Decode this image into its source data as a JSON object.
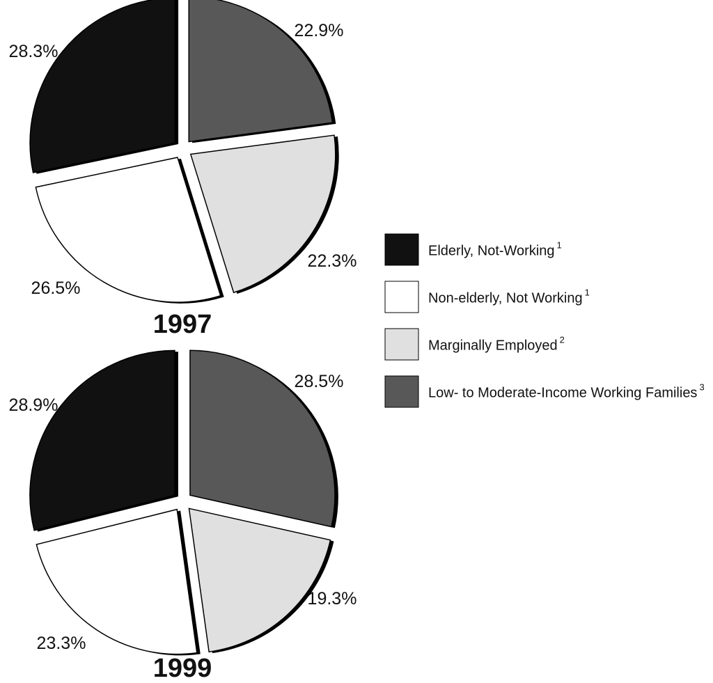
{
  "colors": {
    "elderly": "#111111",
    "nonelderly": "#ffffff",
    "marginal": "#e0e0e0",
    "lowmod": "#585858",
    "shadow": "#000000",
    "outline": "#000000"
  },
  "legend": [
    {
      "key": "elderly",
      "label": "Elderly, Not-Working",
      "sup": "1"
    },
    {
      "key": "nonelderly",
      "label": "Non-elderly, Not Working",
      "sup": "1"
    },
    {
      "key": "marginal",
      "label": "Marginally Employed",
      "sup": "2"
    },
    {
      "key": "lowmod",
      "label": "Low- to Moderate-Income Working Families",
      "sup": "3"
    }
  ],
  "chart_data": [
    {
      "type": "pie",
      "title": "1997",
      "categories": [
        "Low- to Moderate-Income Working Families",
        "Marginally Employed",
        "Non-elderly, Not Working",
        "Elderly, Not-Working"
      ],
      "keys": [
        "lowmod",
        "marginal",
        "nonelderly",
        "elderly"
      ],
      "values": [
        22.9,
        22.3,
        26.5,
        28.3
      ],
      "labels": [
        "22.9%",
        "22.3%",
        "26.5%",
        "28.3%"
      ]
    },
    {
      "type": "pie",
      "title": "1999",
      "categories": [
        "Low- to Moderate-Income Working Families",
        "Marginally Employed",
        "Non-elderly, Not Working",
        "Elderly, Not-Working"
      ],
      "keys": [
        "lowmod",
        "marginal",
        "nonelderly",
        "elderly"
      ],
      "values": [
        28.5,
        19.3,
        23.3,
        28.9
      ],
      "labels": [
        "28.5%",
        "19.3%",
        "23.3%",
        "28.9%"
      ]
    }
  ]
}
